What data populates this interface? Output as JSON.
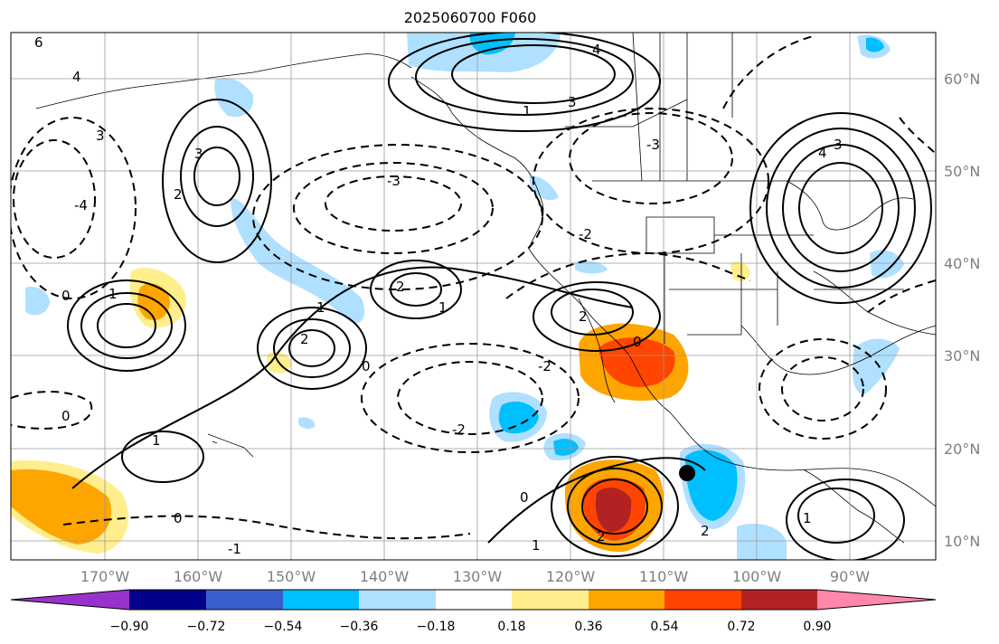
{
  "title": "2025060700 F060",
  "longitude_labels": [
    "170°W",
    "160°W",
    "150°W",
    "140°W",
    "130°W",
    "120°W",
    "110°W",
    "100°W",
    "90°W"
  ],
  "latitude_labels": [
    "60°N",
    "50°N",
    "40°N",
    "30°N",
    "20°N",
    "10°N"
  ],
  "colorbar": {
    "ticks": [
      "−0.90",
      "−0.72",
      "−0.54",
      "−0.36",
      "−0.18",
      "0.18",
      "0.36",
      "0.54",
      "0.72",
      "0.90"
    ],
    "colors": [
      "#9932cc",
      "#00008b",
      "#3a5fcd",
      "#00bfff",
      "#b0e0ff",
      "#ffffff",
      "#ffee8c",
      "#ffa500",
      "#ff4500",
      "#b22222",
      "#ff88aa"
    ]
  },
  "contour_labels": [
    "6",
    "4",
    "3",
    "2",
    "1",
    "0",
    "-1",
    "-2",
    "-3",
    "-4"
  ],
  "marker": "storm-position-dot"
}
